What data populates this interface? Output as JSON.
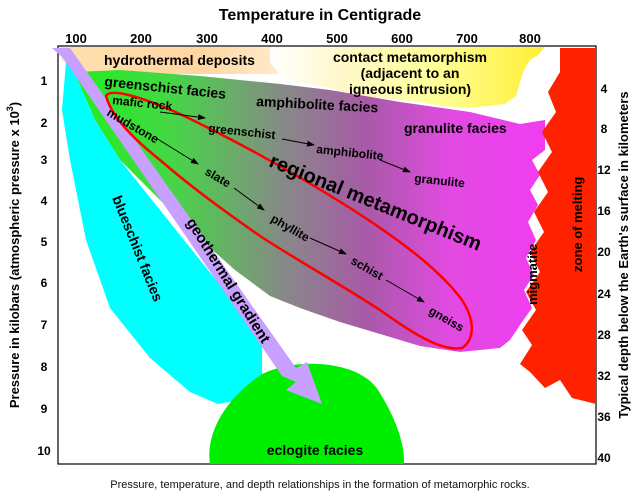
{
  "title": "Temperature in Centigrade",
  "top_ticks": [
    "100",
    "200",
    "300",
    "400",
    "500",
    "600",
    "700",
    "800"
  ],
  "left_axis_label": "Pressure in kilobars (atmospheric pressure x 10",
  "left_axis_sup": "3",
  "left_axis_close": ")",
  "left_ticks": [
    "1",
    "2",
    "3",
    "4",
    "5",
    "6",
    "7",
    "8",
    "9",
    "10"
  ],
  "right_axis_label": "Typical depth below the Earth's surface in kilometers",
  "right_ticks": [
    "4",
    "8",
    "12",
    "16",
    "20",
    "24",
    "28",
    "32",
    "36",
    "40"
  ],
  "regions": {
    "hydrothermal": "hydrothermal deposits",
    "contact_line1": "contact metamorphism",
    "contact_line2": "(adjacent to an",
    "contact_line3": "igneous intrusion)",
    "greenschist": "greenschist facies",
    "amphibolite": "amphibolite facies",
    "granulite": "granulite facies",
    "blueschist": "blueschist facies",
    "eclogite": "eclogite facies",
    "regional_line1": "regional metamorphism",
    "geothermal": "geothermal gradient",
    "migmatite": "migmatite",
    "melting": "zone of melting"
  },
  "mafic_series": [
    "mafic rock",
    "greenschist",
    "amphibolite",
    "granulite"
  ],
  "mudstone_series": [
    "mudstone",
    "slate",
    "phyllite",
    "schist",
    "gneiss"
  ],
  "colors": {
    "blueschist": "#00ffff",
    "greenschist": "#22ee22",
    "amphibolite": "#7a7a7a",
    "granulite": "#ee44ee",
    "melting": "#ff2200",
    "eclogite": "#00ee00",
    "contact": "#ffff66",
    "hydrothermal": "#ffcc88",
    "geothermal": "#c8a0ff",
    "outline": "#ff0000"
  },
  "caption": "Pressure, temperature, and depth relationships in the formation of metamorphic rocks."
}
